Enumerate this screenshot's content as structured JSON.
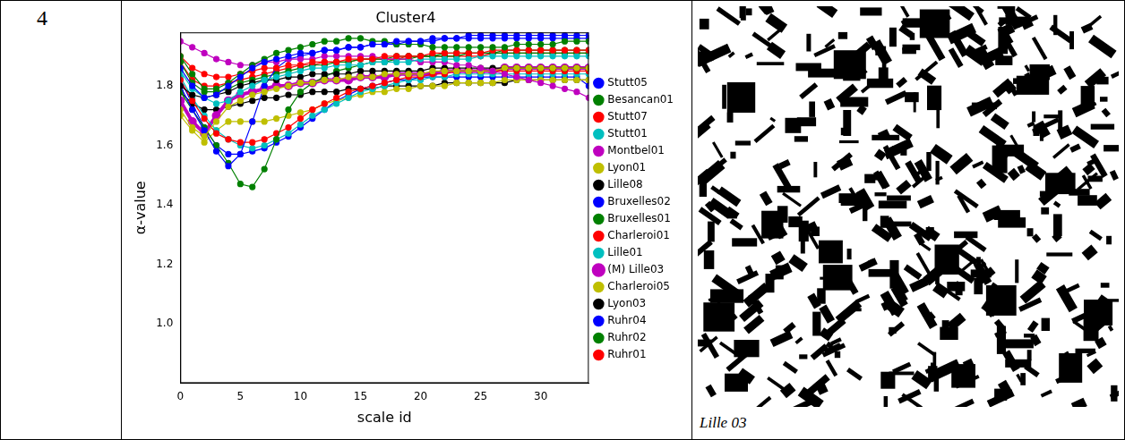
{
  "row_label": "4",
  "chart_data": {
    "type": "line",
    "title": "Cluster4",
    "x_label": "scale id",
    "y_label": "α-value",
    "x": [
      0,
      1,
      2,
      3,
      4,
      5,
      6,
      7,
      8,
      9,
      10,
      11,
      12,
      13,
      14,
      15,
      16,
      17,
      18,
      19,
      20,
      21,
      22,
      23,
      24,
      25,
      26,
      27,
      28,
      29,
      30,
      31,
      32,
      33,
      34
    ],
    "xlim": [
      0,
      34
    ],
    "xticks": [
      0,
      5,
      10,
      15,
      20,
      25,
      30
    ],
    "ylim": [
      0.8,
      1.98
    ],
    "yticks": [
      {
        "value": 1,
        "label": "1.0"
      },
      1.2,
      1.4,
      1.6,
      1.8
    ],
    "grid": false,
    "legend": "right",
    "marker": "circle",
    "series": [
      {
        "name": "Stutt05",
        "color": "#0000ff",
        "values": [
          1.86,
          1.8,
          1.76,
          1.77,
          1.8,
          1.83,
          1.86,
          1.88,
          1.89,
          1.9,
          1.91,
          1.91,
          1.92,
          1.92,
          1.93,
          1.93,
          1.94,
          1.94,
          1.95,
          1.95,
          1.95,
          1.96,
          1.96,
          1.96,
          1.97,
          1.97,
          1.97,
          1.97,
          1.97,
          1.97,
          1.97,
          1.97,
          1.97,
          1.97,
          1.97
        ]
      },
      {
        "name": "Besancan01",
        "color": "#008000",
        "values": [
          1.9,
          1.84,
          1.79,
          1.79,
          1.81,
          1.84,
          1.87,
          1.89,
          1.91,
          1.92,
          1.93,
          1.94,
          1.95,
          1.95,
          1.96,
          1.96,
          1.95,
          1.95,
          1.94,
          1.94,
          1.94,
          1.93,
          1.93,
          1.93,
          1.93,
          1.93,
          1.93,
          1.93,
          1.94,
          1.94,
          1.94,
          1.94,
          1.95,
          1.95,
          1.95
        ]
      },
      {
        "name": "Stutt07",
        "color": "#ff0000",
        "values": [
          1.9,
          1.86,
          1.84,
          1.83,
          1.83,
          1.84,
          1.85,
          1.86,
          1.86,
          1.87,
          1.87,
          1.88,
          1.88,
          1.88,
          1.89,
          1.89,
          1.89,
          1.9,
          1.9,
          1.9,
          1.9,
          1.91,
          1.91,
          1.91,
          1.91,
          1.91,
          1.92,
          1.92,
          1.92,
          1.92,
          1.92,
          1.92,
          1.92,
          1.92,
          1.92
        ]
      },
      {
        "name": "Stutt01",
        "color": "#00bfbf",
        "values": [
          1.85,
          1.79,
          1.76,
          1.74,
          1.75,
          1.78,
          1.8,
          1.82,
          1.83,
          1.84,
          1.85,
          1.86,
          1.86,
          1.87,
          1.87,
          1.87,
          1.88,
          1.88,
          1.88,
          1.88,
          1.89,
          1.89,
          1.89,
          1.89,
          1.89,
          1.9,
          1.9,
          1.9,
          1.9,
          1.9,
          1.9,
          1.9,
          1.9,
          1.9,
          1.9
        ]
      },
      {
        "name": "Montbel01",
        "color": "#bf00bf",
        "values": [
          1.95,
          1.93,
          1.91,
          1.89,
          1.88,
          1.87,
          1.87,
          1.88,
          1.88,
          1.89,
          1.89,
          1.89,
          1.9,
          1.9,
          1.9,
          1.9,
          1.9,
          1.89,
          1.89,
          1.89,
          1.88,
          1.88,
          1.88,
          1.87,
          1.87,
          1.86,
          1.85,
          1.84,
          1.83,
          1.82,
          1.81,
          1.8,
          1.79,
          1.78,
          1.76
        ]
      },
      {
        "name": "Lyon01",
        "color": "#bfbf00",
        "values": [
          1.72,
          1.66,
          1.63,
          1.68,
          1.73,
          1.75,
          1.77,
          1.78,
          1.79,
          1.8,
          1.81,
          1.81,
          1.82,
          1.82,
          1.83,
          1.83,
          1.83,
          1.84,
          1.84,
          1.84,
          1.84,
          1.85,
          1.85,
          1.85,
          1.85,
          1.85,
          1.85,
          1.86,
          1.86,
          1.86,
          1.86,
          1.86,
          1.86,
          1.86,
          1.86
        ]
      },
      {
        "name": "Lille08",
        "color": "#000000",
        "values": [
          1.8,
          1.77,
          1.76,
          1.77,
          1.78,
          1.8,
          1.81,
          1.82,
          1.82,
          1.83,
          1.83,
          1.84,
          1.84,
          1.84,
          1.84,
          1.85,
          1.85,
          1.85,
          1.85,
          1.85,
          1.85,
          1.86,
          1.86,
          1.86,
          1.86,
          1.86,
          1.86,
          1.86,
          1.86,
          1.86,
          1.86,
          1.86,
          1.86,
          1.86,
          1.86
        ]
      },
      {
        "name": "Bruxelles02",
        "color": "#0000ff",
        "values": [
          1.8,
          1.72,
          1.65,
          1.58,
          1.53,
          1.57,
          1.68,
          1.8,
          1.86,
          1.89,
          1.9,
          1.91,
          1.92,
          1.92,
          1.93,
          1.93,
          1.94,
          1.94,
          1.94,
          1.95,
          1.95,
          1.95,
          1.96,
          1.96,
          1.96,
          1.96,
          1.96,
          1.96,
          1.96,
          1.96,
          1.96,
          1.96,
          1.96,
          1.96,
          1.96
        ]
      },
      {
        "name": "Bruxelles01",
        "color": "#008000",
        "values": [
          1.78,
          1.72,
          1.66,
          1.6,
          1.54,
          1.47,
          1.46,
          1.52,
          1.62,
          1.72,
          1.78,
          1.81,
          1.83,
          1.85,
          1.86,
          1.87,
          1.88,
          1.88,
          1.89,
          1.89,
          1.9,
          1.9,
          1.9,
          1.9,
          1.91,
          1.91,
          1.91,
          1.91,
          1.91,
          1.91,
          1.91,
          1.91,
          1.91,
          1.91,
          1.91
        ]
      },
      {
        "name": "Charleroi01",
        "color": "#ff0000",
        "values": [
          1.82,
          1.75,
          1.69,
          1.64,
          1.62,
          1.61,
          1.61,
          1.62,
          1.64,
          1.66,
          1.69,
          1.72,
          1.74,
          1.76,
          1.78,
          1.79,
          1.8,
          1.81,
          1.82,
          1.83,
          1.83,
          1.84,
          1.84,
          1.85,
          1.85,
          1.85,
          1.85,
          1.85,
          1.85,
          1.85,
          1.85,
          1.85,
          1.85,
          1.85,
          1.85
        ]
      },
      {
        "name": "Lille01",
        "color": "#00bfbf",
        "values": [
          1.83,
          1.76,
          1.7,
          1.65,
          1.62,
          1.6,
          1.59,
          1.6,
          1.62,
          1.64,
          1.67,
          1.7,
          1.72,
          1.74,
          1.76,
          1.78,
          1.79,
          1.8,
          1.81,
          1.82,
          1.82,
          1.83,
          1.83,
          1.84,
          1.84,
          1.84,
          1.84,
          1.84,
          1.84,
          1.84,
          1.84,
          1.84,
          1.84,
          1.84,
          1.84
        ]
      },
      {
        "name": "(M) Lille03",
        "color": "#bf00bf",
        "line_style": "bold",
        "values": [
          1.75,
          1.68,
          1.64,
          1.7,
          1.75,
          1.77,
          1.78,
          1.79,
          1.8,
          1.8,
          1.81,
          1.81,
          1.82,
          1.82,
          1.82,
          1.83,
          1.83,
          1.83,
          1.84,
          1.84,
          1.84,
          1.84,
          1.85,
          1.85,
          1.85,
          1.85,
          1.85,
          1.86,
          1.86,
          1.86,
          1.86,
          1.86,
          1.86,
          1.86,
          1.86
        ]
      },
      {
        "name": "Charleroi05",
        "color": "#bfbf00",
        "values": [
          1.7,
          1.65,
          1.61,
          1.65,
          1.68,
          1.68,
          1.68,
          1.68,
          1.69,
          1.7,
          1.71,
          1.72,
          1.74,
          1.75,
          1.76,
          1.77,
          1.78,
          1.78,
          1.79,
          1.79,
          1.8,
          1.8,
          1.8,
          1.81,
          1.81,
          1.81,
          1.81,
          1.82,
          1.82,
          1.82,
          1.82,
          1.82,
          1.82,
          1.82,
          1.82
        ]
      },
      {
        "name": "Lyon03",
        "color": "#000000",
        "values": [
          1.78,
          1.74,
          1.72,
          1.72,
          1.73,
          1.74,
          1.75,
          1.76,
          1.76,
          1.77,
          1.77,
          1.78,
          1.78,
          1.78,
          1.79,
          1.79,
          1.79,
          1.8,
          1.8,
          1.8,
          1.8,
          1.8,
          1.81,
          1.81,
          1.81,
          1.81,
          1.81,
          1.81,
          1.82,
          1.82,
          1.82,
          1.82,
          1.82,
          1.82,
          1.82
        ]
      },
      {
        "name": "Ruhr04",
        "color": "#0000ff",
        "values": [
          1.82,
          1.74,
          1.66,
          1.6,
          1.57,
          1.57,
          1.58,
          1.59,
          1.61,
          1.63,
          1.66,
          1.69,
          1.72,
          1.75,
          1.77,
          1.79,
          1.8,
          1.81,
          1.82,
          1.82,
          1.83,
          1.83,
          1.83,
          1.83,
          1.83,
          1.83,
          1.83,
          1.83,
          1.83,
          1.83,
          1.83,
          1.83,
          1.83,
          1.83,
          1.8
        ]
      },
      {
        "name": "Ruhr02",
        "color": "#008000",
        "values": [
          1.88,
          1.81,
          1.78,
          1.78,
          1.79,
          1.81,
          1.82,
          1.83,
          1.84,
          1.85,
          1.86,
          1.87,
          1.87,
          1.88,
          1.88,
          1.89,
          1.89,
          1.89,
          1.9,
          1.9,
          1.9,
          1.9,
          1.91,
          1.91,
          1.91,
          1.91,
          1.91,
          1.92,
          1.92,
          1.92,
          1.92,
          1.92,
          1.92,
          1.92,
          1.92
        ]
      },
      {
        "name": "Ruhr01",
        "color": "#ff0000",
        "values": [
          1.88,
          1.82,
          1.8,
          1.8,
          1.81,
          1.82,
          1.83,
          1.84,
          1.85,
          1.86,
          1.87,
          1.87,
          1.88,
          1.88,
          1.88,
          1.89,
          1.89,
          1.89,
          1.89,
          1.9,
          1.9,
          1.9,
          1.9,
          1.9,
          1.9,
          1.9,
          1.91,
          1.91,
          1.91,
          1.91,
          1.91,
          1.91,
          1.91,
          1.91,
          1.91
        ]
      }
    ]
  },
  "image": {
    "caption": "Lille 03"
  }
}
